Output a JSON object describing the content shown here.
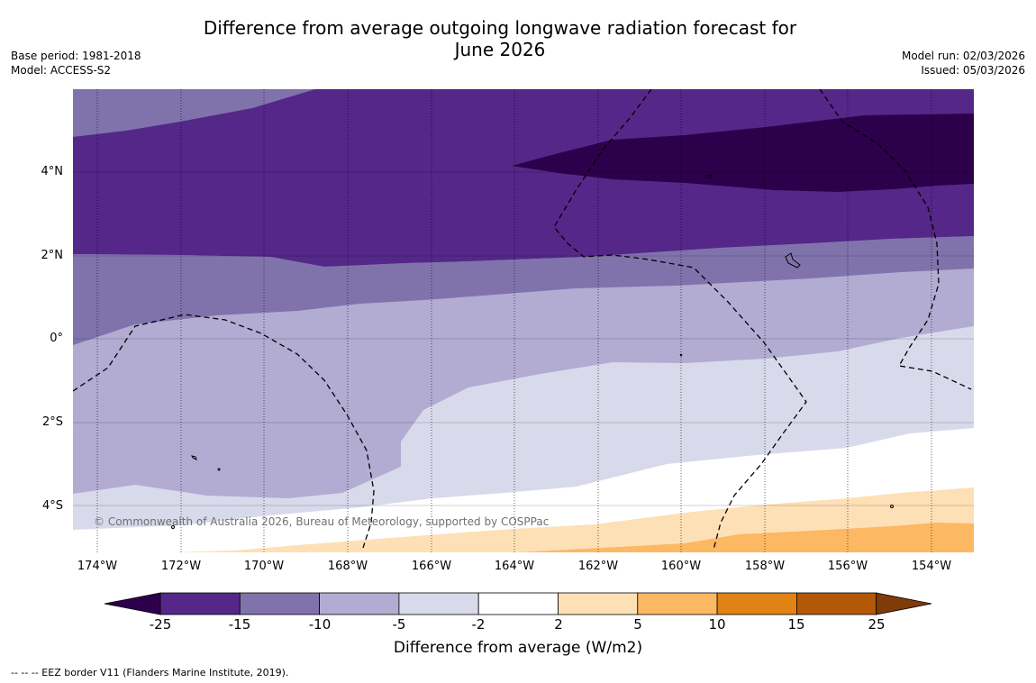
{
  "title_line1": "Difference from average outgoing longwave radiation forecast for",
  "title_line2": "June 2026",
  "meta_left": {
    "base_period": "Base period: 1981-2018",
    "model": "Model: ACCESS-S2"
  },
  "meta_right": {
    "model_run": "Model run: 02/03/2026",
    "issued": "Issued: 05/03/2026"
  },
  "lat_labels": [
    "4°N",
    "2°N",
    "0°",
    "2°S",
    "4°S"
  ],
  "lon_labels": [
    "174°W",
    "172°W",
    "170°W",
    "168°W",
    "166°W",
    "164°W",
    "162°W",
    "160°W",
    "158°W",
    "156°W",
    "154°W"
  ],
  "copyright": "© Commonwealth of Australia 2026, Bureau of Meteorology, supported by COSPPac",
  "colorbar": {
    "ticks": [
      "-25",
      "-15",
      "-10",
      "-5",
      "-2",
      "2",
      "5",
      "10",
      "15",
      "25"
    ],
    "colors": [
      "#542788",
      "#8073ac",
      "#b2abd2",
      "#d8daeb",
      "#ffffff",
      "#fee0b6",
      "#fdb863",
      "#e08214",
      "#b35806"
    ],
    "under_color": "#2d004b",
    "over_color": "#7f3b08",
    "label": "Difference from average (W/m2)"
  },
  "footnote": "--  --  -- EEZ border V11 (Flanders Marine Institute, 2019).",
  "fills": {
    "deep": "#2d004b",
    "strong": "#542788",
    "mid": "#8073ac",
    "light": "#b2abd2",
    "pale": "#d8daeb",
    "neutral": "#ffffff",
    "warm1": "#fee0b6",
    "warm2": "#fdb863"
  }
}
